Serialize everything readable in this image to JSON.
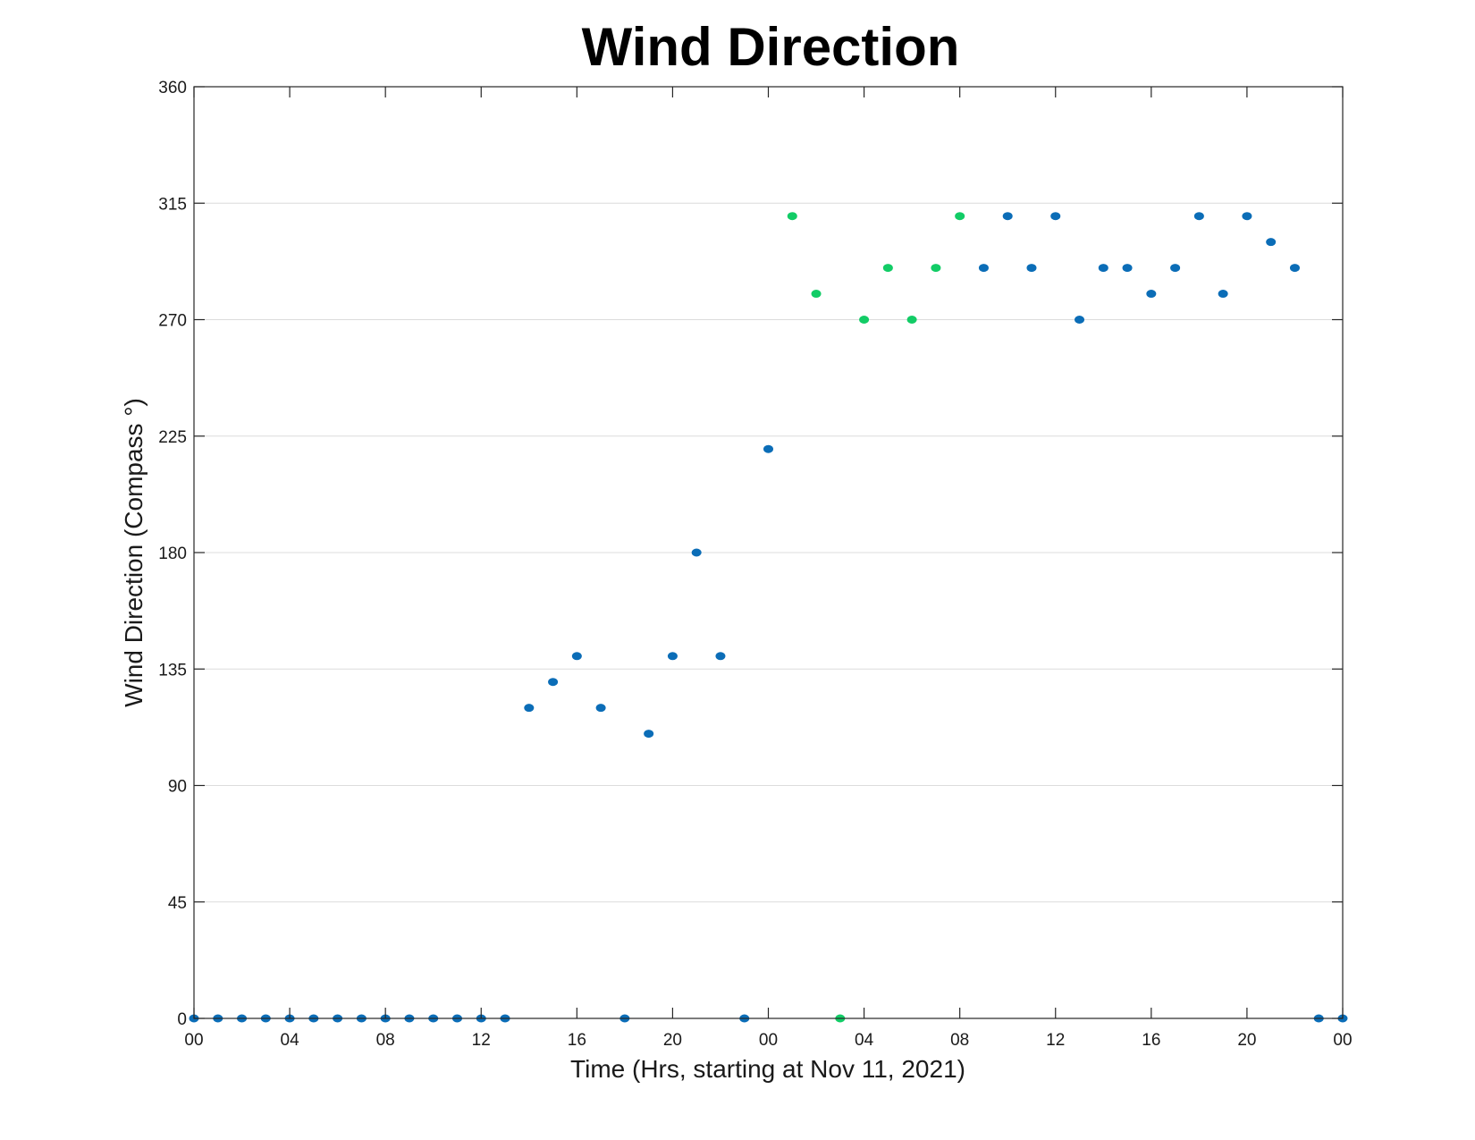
{
  "chart_data": {
    "type": "scatter",
    "title": "Wind Direction",
    "xlabel": "Time (Hrs, starting at Nov 11, 2021)",
    "ylabel": "Wind Direction (Compass °)",
    "xlim": [
      0,
      48
    ],
    "ylim": [
      0,
      360
    ],
    "x_ticks": [
      0,
      4,
      8,
      12,
      16,
      20,
      24,
      28,
      32,
      36,
      40,
      44,
      48
    ],
    "x_tick_labels": [
      "00",
      "04",
      "08",
      "12",
      "16",
      "20",
      "00",
      "04",
      "08",
      "12",
      "16",
      "20",
      "00"
    ],
    "y_ticks": [
      0,
      45,
      90,
      135,
      180,
      225,
      270,
      315,
      360
    ],
    "y_tick_labels": [
      "0",
      "45",
      "90",
      "135",
      "180",
      "225",
      "270",
      "315",
      "360"
    ],
    "grid": "horizontal",
    "series": [
      {
        "color": "#0b6db7",
        "x": [
          0,
          1,
          2,
          3,
          4,
          5,
          6,
          7,
          8,
          9,
          10,
          11,
          12,
          13,
          14,
          15,
          16,
          17,
          18,
          19,
          20,
          21,
          22,
          23,
          24,
          33,
          34,
          35,
          36,
          37,
          38,
          39,
          40,
          41,
          42,
          43,
          44,
          45,
          46,
          47,
          48
        ],
        "y": [
          0,
          0,
          0,
          0,
          0,
          0,
          0,
          0,
          0,
          0,
          0,
          0,
          0,
          0,
          120,
          130,
          140,
          120,
          0,
          110,
          140,
          180,
          140,
          0,
          220,
          290,
          310,
          290,
          310,
          270,
          290,
          290,
          280,
          290,
          310,
          280,
          310,
          300,
          290,
          0,
          0
        ]
      },
      {
        "color": "#12cc66",
        "x": [
          25,
          26,
          27,
          28,
          29,
          30,
          31,
          32
        ],
        "y": [
          310,
          280,
          0,
          270,
          290,
          270,
          290,
          310
        ]
      }
    ]
  }
}
